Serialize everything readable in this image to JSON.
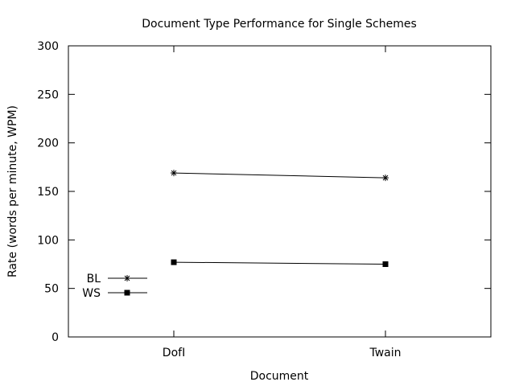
{
  "chart_data": {
    "type": "line",
    "title": "Document Type Performance for Single Schemes",
    "xlabel": "Document",
    "ylabel": "Rate (words per minute, WPM)",
    "categories": [
      "DofI",
      "Twain"
    ],
    "ylim": [
      0,
      300
    ],
    "yticks": [
      0,
      50,
      100,
      150,
      200,
      250,
      300
    ],
    "grid": false,
    "legend_position": "bottom-left",
    "series": [
      {
        "name": "BL",
        "values": [
          169,
          164
        ],
        "marker": "asterisk",
        "color": "#000000"
      },
      {
        "name": "WS",
        "values": [
          77,
          75
        ],
        "marker": "square",
        "color": "#000000"
      }
    ]
  }
}
